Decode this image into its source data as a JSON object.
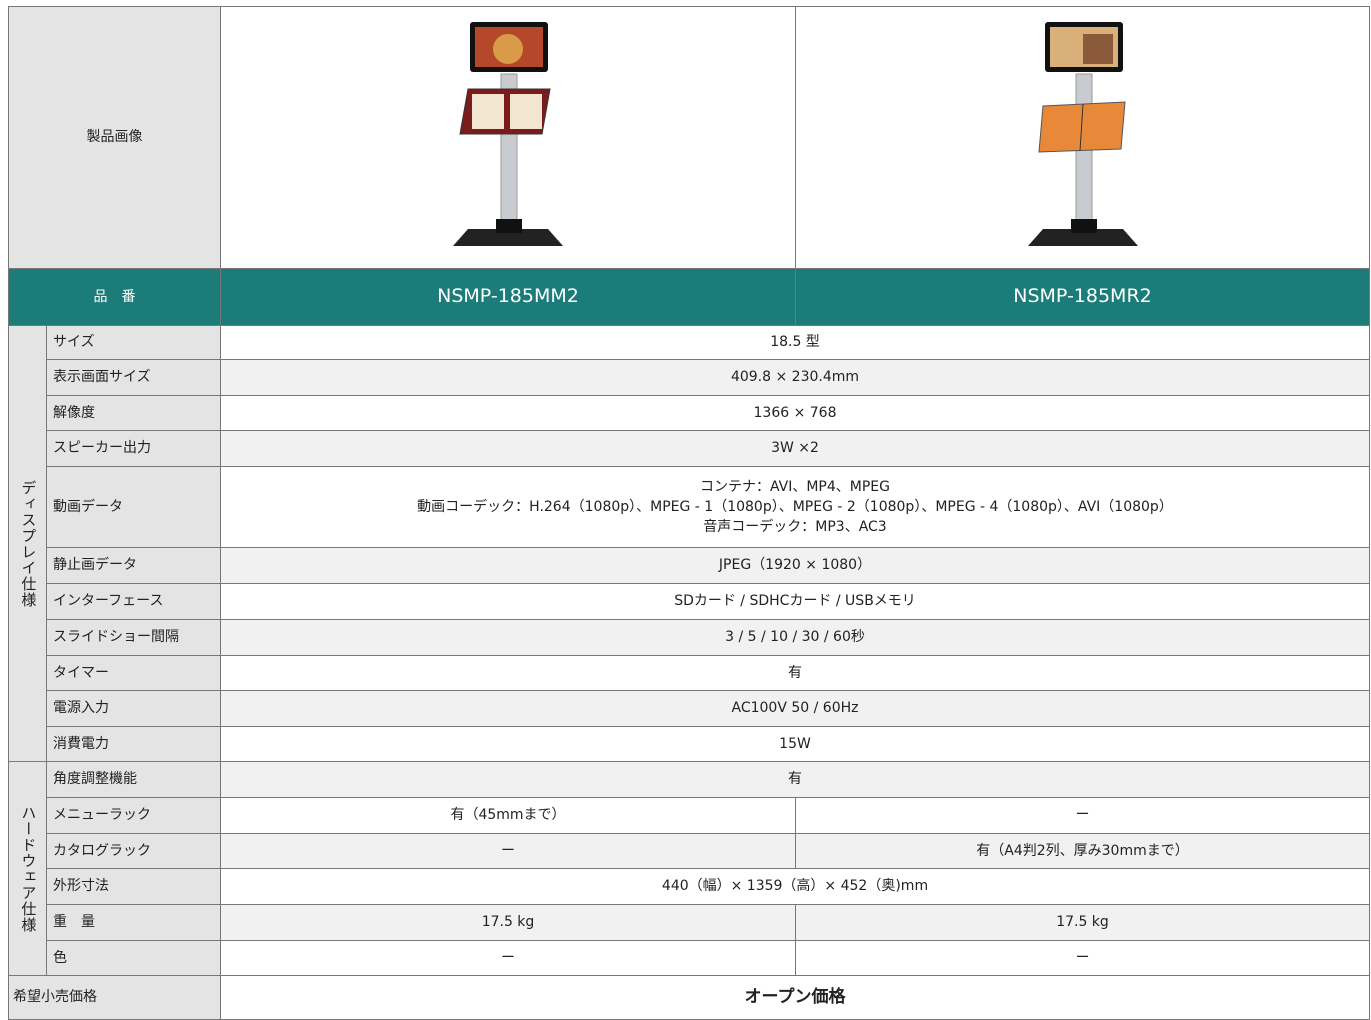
{
  "header": {
    "image_label": "製品画像",
    "part_label": "品　番",
    "models": [
      "NSMP-185MM2",
      "NSMP-185MR2"
    ]
  },
  "groups": [
    {
      "label": "ディスプレイ仕様",
      "rows": [
        {
          "label": "サイズ",
          "cells": [
            "18.5 型"
          ]
        },
        {
          "label": "表示画面サイズ",
          "cells": [
            "409.8 × 230.4mm"
          ]
        },
        {
          "label": "解像度",
          "cells": [
            "1366 × 768"
          ]
        },
        {
          "label": "スピーカー出力",
          "cells": [
            "3W ×2"
          ]
        },
        {
          "label": "動画データ",
          "cells": [
            [
              "コンテナ：AVI、MP4、MPEG",
              "動画コーデック：H.264（1080p）、MPEG - 1（1080p）、MPEG - 2（1080p）、MPEG - 4（1080p）、AVI（1080p）",
              "音声コーデック：MP3、AC3"
            ]
          ]
        },
        {
          "label": "静止画データ",
          "cells": [
            "JPEG（1920 × 1080）"
          ]
        },
        {
          "label": "インターフェース",
          "cells": [
            "SDカード / SDHCカード / USBメモリ"
          ]
        },
        {
          "label": "スライドショー間隔",
          "cells": [
            "3 / 5 / 10 / 30 / 60秒"
          ]
        },
        {
          "label": "タイマー",
          "cells": [
            "有"
          ]
        },
        {
          "label": "電源入力",
          "cells": [
            "AC100V 50 / 60Hz"
          ]
        },
        {
          "label": "消費電力",
          "cells": [
            "15W"
          ]
        }
      ]
    },
    {
      "label": "ハードウェア仕様",
      "rows": [
        {
          "label": "角度調整機能",
          "cells": [
            "有"
          ]
        },
        {
          "label": "メニューラック",
          "cells": [
            "有（45mmまで）",
            "ー"
          ]
        },
        {
          "label": "カタログラック",
          "cells": [
            "ー",
            "有（A4判2列、厚み30mmまで）"
          ]
        },
        {
          "label": "外形寸法",
          "cells": [
            "440（幅）× 1359（高）× 452（奥)mm"
          ]
        },
        {
          "label": "重　量",
          "cells": [
            "17.5 kg",
            "17.5 kg"
          ]
        },
        {
          "label": "色",
          "cells": [
            "ー",
            "ー"
          ]
        }
      ]
    }
  ],
  "price": {
    "label": "希望小売価格",
    "value": "オープン価格"
  }
}
